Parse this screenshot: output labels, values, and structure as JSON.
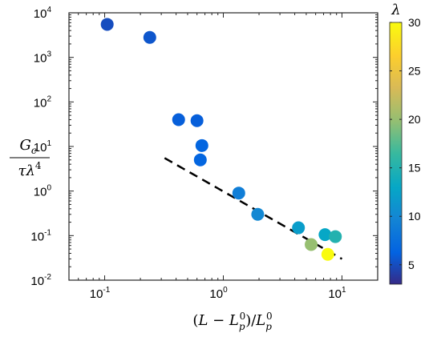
{
  "chart_data": {
    "type": "scatter",
    "x_scale": "log",
    "y_scale": "log",
    "xlim": [
      0.05,
      20
    ],
    "ylim": [
      0.01,
      10000
    ],
    "xlabel": "(L − L_p^0)/L_p^0",
    "ylabel": "G_c / τλ^4",
    "x_ticks": [
      {
        "base": "10",
        "exp": "-1",
        "value": 0.1
      },
      {
        "base": "10",
        "exp": "0",
        "value": 1
      },
      {
        "base": "10",
        "exp": "1",
        "value": 10
      }
    ],
    "y_ticks": [
      {
        "base": "10",
        "exp": "-2",
        "value": 0.01
      },
      {
        "base": "10",
        "exp": "-1",
        "value": 0.1
      },
      {
        "base": "10",
        "exp": "0",
        "value": 1
      },
      {
        "base": "10",
        "exp": "1",
        "value": 10
      },
      {
        "base": "10",
        "exp": "2",
        "value": 100
      },
      {
        "base": "10",
        "exp": "3",
        "value": 1000
      },
      {
        "base": "10",
        "exp": "4",
        "value": 10000
      }
    ],
    "points": [
      {
        "x": 0.105,
        "y": 5500,
        "lambda": 5
      },
      {
        "x": 0.24,
        "y": 2800,
        "lambda": 5.5
      },
      {
        "x": 0.42,
        "y": 40,
        "lambda": 6
      },
      {
        "x": 0.6,
        "y": 38,
        "lambda": 6
      },
      {
        "x": 0.66,
        "y": 10.5,
        "lambda": 6.5
      },
      {
        "x": 0.64,
        "y": 5,
        "lambda": 6.5
      },
      {
        "x": 1.35,
        "y": 0.9,
        "lambda": 9
      },
      {
        "x": 1.95,
        "y": 0.3,
        "lambda": 10
      },
      {
        "x": 4.3,
        "y": 0.15,
        "lambda": 12
      },
      {
        "x": 7.2,
        "y": 0.105,
        "lambda": 13
      },
      {
        "x": 8.8,
        "y": 0.095,
        "lambda": 15
      },
      {
        "x": 5.5,
        "y": 0.063,
        "lambda": 20
      },
      {
        "x": 7.6,
        "y": 0.038,
        "lambda": 30
      }
    ],
    "fit_line": {
      "style": "dashed",
      "color": "#000000",
      "x": [
        0.32,
        10
      ],
      "y": [
        5.5,
        0.03
      ]
    },
    "colorbar": {
      "title": "λ",
      "min": 3,
      "max": 30,
      "ticks": [
        "5",
        "10",
        "15",
        "20",
        "25",
        "30"
      ],
      "tick_values": [
        5,
        10,
        15,
        20,
        25,
        30
      ],
      "colormap": "parula"
    },
    "grid": false,
    "legend": "none"
  }
}
